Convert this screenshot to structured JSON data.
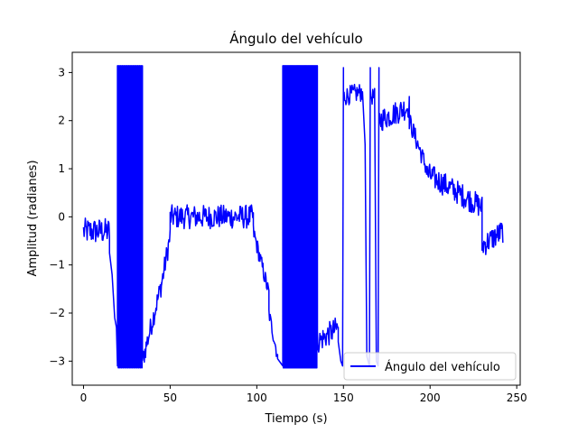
{
  "chart_data": {
    "type": "line",
    "title": "Ángulo del vehículo",
    "xlabel": "Tiempo (s)",
    "ylabel": "Amplitud (radianes)",
    "xlim": [
      -6.5,
      252
    ],
    "ylim": [
      -3.5,
      3.42
    ],
    "xticks": [
      0,
      50,
      100,
      150,
      200,
      250
    ],
    "yticks": [
      -3,
      -2,
      -1,
      0,
      1,
      2,
      3
    ],
    "legend": {
      "position": "lower-right"
    },
    "grid": false,
    "series": [
      {
        "name": "Ángulo del vehículo",
        "color": "#0000ff",
        "segments": [
          {
            "type": "noise",
            "x": [
              0,
              15
            ],
            "y": [
              -0.3,
              -0.3
            ],
            "amp": 0.55
          },
          {
            "type": "line",
            "points": [
              [
                15,
                -0.75
              ],
              [
                16.5,
                -1.2
              ],
              [
                18,
                -2.1
              ],
              [
                19,
                -2.3
              ],
              [
                19.6,
                -3.1
              ]
            ]
          },
          {
            "type": "wrap",
            "x": [
              19.6,
              34
            ],
            "low": -3.14,
            "high": 3.14,
            "period": 0.45
          },
          {
            "type": "noise",
            "x": [
              34,
              45
            ],
            "y": [
              -3.0,
              -1.4
            ],
            "amp": 0.45
          },
          {
            "type": "noise",
            "x": [
              45,
              50
            ],
            "y": [
              -1.4,
              -0.4
            ],
            "amp": 0.45
          },
          {
            "type": "noise",
            "x": [
              50,
              98
            ],
            "y": [
              0.0,
              0.0
            ],
            "amp": 0.5
          },
          {
            "type": "noise",
            "x": [
              98,
              107
            ],
            "y": [
              -0.3,
              -1.6
            ],
            "amp": 0.35
          },
          {
            "type": "noise",
            "x": [
              107,
              112
            ],
            "y": [
              -2.0,
              -2.9
            ],
            "amp": 0.3
          },
          {
            "type": "line",
            "points": [
              [
                112,
                -2.95
              ],
              [
                114,
                -3.05
              ],
              [
                115,
                -3.1
              ]
            ]
          },
          {
            "type": "wrap",
            "x": [
              115,
              135
            ],
            "low": -3.14,
            "high": 3.14,
            "period": 0.3
          },
          {
            "type": "noise",
            "x": [
              135,
              147
            ],
            "y": [
              -2.6,
              -2.3
            ],
            "amp": 0.5
          },
          {
            "type": "line",
            "points": [
              [
                147,
                -2.6
              ],
              [
                148.5,
                -3.0
              ],
              [
                149.5,
                -3.1
              ],
              [
                150,
                3.1
              ]
            ]
          },
          {
            "type": "noise",
            "x": [
              150,
              161
            ],
            "y": [
              2.5,
              2.6
            ],
            "amp": 0.4
          },
          {
            "type": "line",
            "points": [
              [
                161,
                2.6
              ],
              [
                162.5,
                1.5
              ],
              [
                163.5,
                -2.9
              ],
              [
                165,
                -3.1
              ],
              [
                165.5,
                3.1
              ]
            ]
          },
          {
            "type": "noise",
            "x": [
              165.5,
              168
            ],
            "y": [
              2.5,
              2.5
            ],
            "amp": 0.35
          },
          {
            "type": "line",
            "points": [
              [
                168,
                2.5
              ],
              [
                169,
                -3.0
              ],
              [
                170,
                -3.1
              ],
              [
                170.5,
                3.1
              ]
            ]
          },
          {
            "type": "noise",
            "x": [
              170.5,
              188
            ],
            "y": [
              2.0,
              2.3
            ],
            "amp": 0.5
          },
          {
            "type": "noise",
            "x": [
              188,
              198
            ],
            "y": [
              2.0,
              1.0
            ],
            "amp": 0.4
          },
          {
            "type": "noise",
            "x": [
              198,
              230
            ],
            "y": [
              0.9,
              0.2
            ],
            "amp": 0.5
          },
          {
            "type": "noise",
            "x": [
              230,
              242
            ],
            "y": [
              -0.6,
              -0.3
            ],
            "amp": 0.5
          }
        ]
      }
    ]
  }
}
